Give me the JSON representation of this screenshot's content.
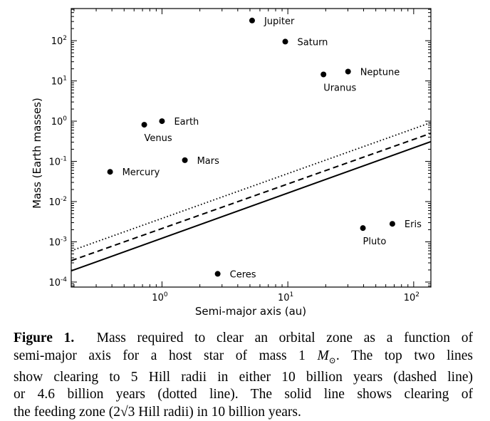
{
  "chart_data": {
    "type": "scatter",
    "xlabel": "Semi-major axis (au)",
    "ylabel": "Mass (Earth masses)",
    "xscale": "log",
    "yscale": "log",
    "xlim": [
      0.19,
      137
    ],
    "ylim": [
      7.5e-05,
      630
    ],
    "xticks": [
      {
        "value": 1,
        "base": "10",
        "exp": "0"
      },
      {
        "value": 10,
        "base": "10",
        "exp": "1"
      },
      {
        "value": 100,
        "base": "10",
        "exp": "2"
      }
    ],
    "yticks": [
      {
        "value": 0.0001,
        "base": "10",
        "exp": "-4"
      },
      {
        "value": 0.001,
        "base": "10",
        "exp": "-3"
      },
      {
        "value": 0.01,
        "base": "10",
        "exp": "-2"
      },
      {
        "value": 0.1,
        "base": "10",
        "exp": "-1"
      },
      {
        "value": 1,
        "base": "10",
        "exp": "0"
      },
      {
        "value": 10,
        "base": "10",
        "exp": "1"
      },
      {
        "value": 100,
        "base": "10",
        "exp": "2"
      }
    ],
    "grid": false,
    "color": "#000000",
    "points": [
      {
        "label": "Mercury",
        "x": 0.387,
        "y": 0.055,
        "label_pos": "right"
      },
      {
        "label": "Venus",
        "x": 0.723,
        "y": 0.815,
        "label_pos": "below"
      },
      {
        "label": "Earth",
        "x": 1.0,
        "y": 1.0,
        "label_pos": "right"
      },
      {
        "label": "Mars",
        "x": 1.52,
        "y": 0.107,
        "label_pos": "right"
      },
      {
        "label": "Ceres",
        "x": 2.77,
        "y": 0.00016,
        "label_pos": "right"
      },
      {
        "label": "Jupiter",
        "x": 5.2,
        "y": 318,
        "label_pos": "right"
      },
      {
        "label": "Saturn",
        "x": 9.54,
        "y": 95,
        "label_pos": "right"
      },
      {
        "label": "Uranus",
        "x": 19.2,
        "y": 14.5,
        "label_pos": "below"
      },
      {
        "label": "Neptune",
        "x": 30.1,
        "y": 17.1,
        "label_pos": "right"
      },
      {
        "label": "Pluto",
        "x": 39.5,
        "y": 0.0022,
        "label_pos": "below"
      },
      {
        "label": "Eris",
        "x": 67.7,
        "y": 0.0028,
        "label_pos": "right"
      }
    ],
    "lines": [
      {
        "style": "dotted",
        "x": [
          0.19,
          137
        ],
        "y": [
          0.0006,
          0.92
        ]
      },
      {
        "style": "dashed",
        "x": [
          0.19,
          137
        ],
        "y": [
          0.00034,
          0.5
        ]
      },
      {
        "style": "solid",
        "x": [
          0.19,
          137
        ],
        "y": [
          0.00019,
          0.31
        ]
      }
    ]
  },
  "caption": {
    "label": "Figure 1.",
    "line1": "Mass required to clear an orbital zone as a function of",
    "line2_a": "semi-major axis for a host star of mass 1",
    "line2_m": "M",
    "line2_sub": "⊙",
    "line2_b": ".  The top two lines",
    "line3": "show clearing to 5 Hill radii in either 10 billion years (dashed line)",
    "line4": "or 4.6 billion years (dotted line).  The solid line shows clearing of",
    "line5": "the feeding zone (2√3 Hill radii) in 10 billion years."
  }
}
